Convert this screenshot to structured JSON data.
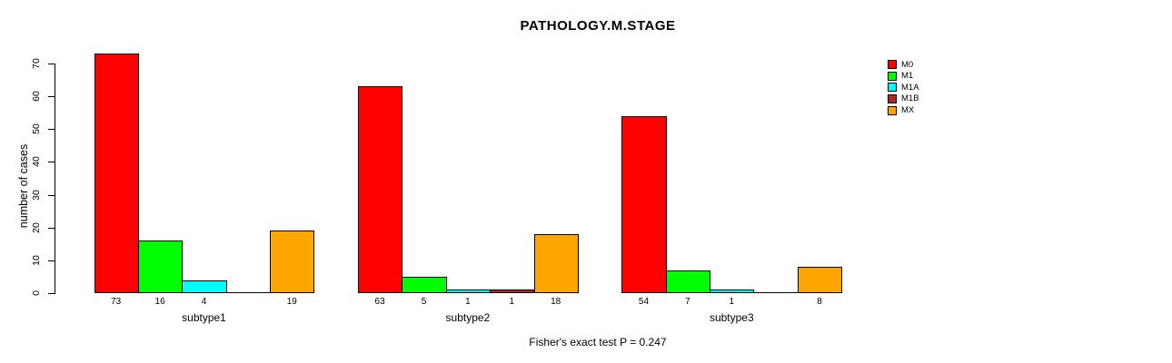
{
  "title": "PATHOLOGY.M.STAGE",
  "caption": "Fisher's exact test P = 0.247",
  "chart_data": {
    "type": "bar",
    "title": "PATHOLOGY.M.STAGE",
    "xlabel": "",
    "ylabel": "number of cases",
    "ylim": [
      0,
      70
    ],
    "yticks": [
      0,
      10,
      20,
      30,
      40,
      50,
      60,
      70
    ],
    "grid": false,
    "legend_position": "right",
    "bar_value_labels_shown": true,
    "zero_values_unlabeled": true,
    "categories": [
      "subtype1",
      "subtype2",
      "subtype3"
    ],
    "series": [
      {
        "name": "M0",
        "color": "#FF0000",
        "values": [
          73,
          63,
          54
        ]
      },
      {
        "name": "M1",
        "color": "#00FF00",
        "values": [
          16,
          5,
          7
        ]
      },
      {
        "name": "M1A",
        "color": "#00FFFF",
        "values": [
          4,
          1,
          1
        ]
      },
      {
        "name": "M1B",
        "color": "#A52A2A",
        "values": [
          0,
          1,
          0
        ]
      },
      {
        "name": "MX",
        "color": "#FFA500",
        "values": [
          19,
          18,
          8
        ]
      }
    ],
    "annotation": "Fisher's exact test P = 0.247",
    "axis_color": "#000000",
    "background_color": "#FFFFFF"
  }
}
